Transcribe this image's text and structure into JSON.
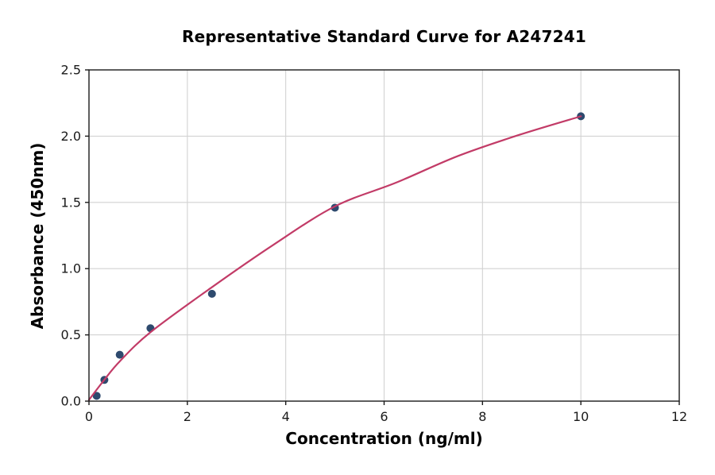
{
  "chart_data": {
    "type": "scatter",
    "title": "Representative Standard Curve for A247241",
    "xlabel": "Concentration (ng/ml)",
    "ylabel": "Absorbance (450nm)",
    "xlim": [
      0,
      12
    ],
    "ylim": [
      0,
      2.5
    ],
    "x_ticks": [
      0,
      2,
      4,
      6,
      8,
      10,
      12
    ],
    "x_tick_labels": [
      "0",
      "2",
      "4",
      "6",
      "8",
      "10",
      "12"
    ],
    "y_ticks": [
      0,
      0.5,
      1.0,
      1.5,
      2.0,
      2.5
    ],
    "y_tick_labels": [
      "0.0",
      "0.5",
      "1.0",
      "1.5",
      "2.0",
      "2.5"
    ],
    "grid": true,
    "legend": "none",
    "series": [
      {
        "name": "standard-points",
        "kind": "scatter",
        "color": "#2e4a6e",
        "marker_radius": 5,
        "points": [
          [
            0.156,
            0.04
          ],
          [
            0.313,
            0.16
          ],
          [
            0.625,
            0.35
          ],
          [
            1.25,
            0.55
          ],
          [
            2.5,
            0.81
          ],
          [
            5,
            1.46
          ],
          [
            10,
            2.15
          ]
        ]
      },
      {
        "name": "fit-curve",
        "kind": "line",
        "color": "#c23b67",
        "line_width": 2.2,
        "points": [
          [
            0,
            0.01
          ],
          [
            0.31,
            0.16
          ],
          [
            0.625,
            0.3
          ],
          [
            1.25,
            0.52
          ],
          [
            2.5,
            0.86
          ],
          [
            3.75,
            1.18
          ],
          [
            5,
            1.47
          ],
          [
            6.25,
            1.65
          ],
          [
            7.5,
            1.85
          ],
          [
            8.75,
            2.01
          ],
          [
            10,
            2.15
          ]
        ]
      }
    ],
    "colors": {
      "grid": "#d2d2d2",
      "axis": "#1a1a1a",
      "tick_text": "#1a1a1a",
      "background": "#ffffff"
    }
  }
}
